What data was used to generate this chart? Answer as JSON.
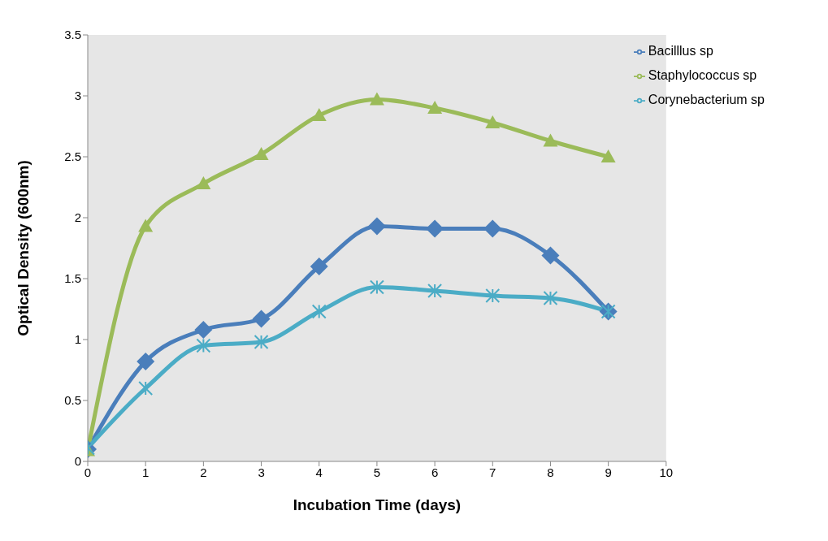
{
  "chart_data": {
    "type": "line",
    "xlabel": "Incubation Time (days)",
    "ylabel": "Optical Density (600nm)",
    "x": [
      0,
      1,
      2,
      3,
      4,
      5,
      6,
      7,
      8,
      9
    ],
    "series": [
      {
        "name": "Bacilllus sp",
        "color": "#4a7ebb",
        "marker": "diamond",
        "values": [
          0.1,
          0.82,
          1.08,
          1.17,
          1.6,
          1.93,
          1.91,
          1.91,
          1.69,
          1.23
        ]
      },
      {
        "name": "Staphylococcus sp",
        "color": "#9bbb59",
        "marker": "triangle",
        "values": [
          0.09,
          1.93,
          2.28,
          2.52,
          2.84,
          2.97,
          2.9,
          2.78,
          2.63,
          2.5
        ]
      },
      {
        "name": "Corynebacterium sp",
        "color": "#4bacc6",
        "marker": "cross",
        "values": [
          0.11,
          0.6,
          0.95,
          0.98,
          1.23,
          1.43,
          1.4,
          1.36,
          1.34,
          1.23
        ]
      }
    ],
    "xlim": [
      0,
      10
    ],
    "xticks": [
      0,
      1,
      2,
      3,
      4,
      5,
      6,
      7,
      8,
      9,
      10
    ],
    "ylim": [
      0,
      3.5
    ],
    "yticks": [
      0,
      0.5,
      1,
      1.5,
      2,
      2.5,
      3,
      3.5
    ],
    "grid": false,
    "legend": "top right",
    "line_style": "solid"
  }
}
